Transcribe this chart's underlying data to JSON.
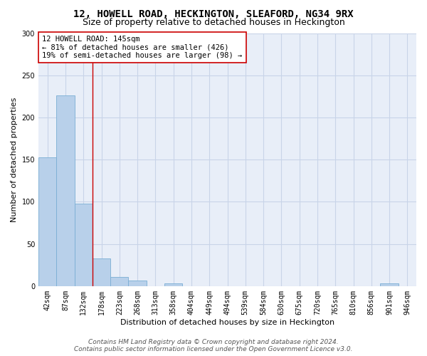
{
  "title": "12, HOWELL ROAD, HECKINGTON, SLEAFORD, NG34 9RX",
  "subtitle": "Size of property relative to detached houses in Heckington",
  "xlabel": "Distribution of detached houses by size in Heckington",
  "ylabel": "Number of detached properties",
  "bin_labels": [
    "42sqm",
    "87sqm",
    "132sqm",
    "178sqm",
    "223sqm",
    "268sqm",
    "313sqm",
    "358sqm",
    "404sqm",
    "449sqm",
    "494sqm",
    "539sqm",
    "584sqm",
    "630sqm",
    "675sqm",
    "720sqm",
    "765sqm",
    "810sqm",
    "856sqm",
    "901sqm",
    "946sqm"
  ],
  "bar_values": [
    153,
    226,
    98,
    33,
    11,
    7,
    0,
    3,
    0,
    0,
    0,
    0,
    0,
    0,
    0,
    0,
    0,
    0,
    0,
    3,
    0
  ],
  "bar_color": "#b8d0ea",
  "bar_edge_color": "#7aaed4",
  "grid_color": "#c8d4e8",
  "background_color": "#e8eef8",
  "vline_color": "#cc0000",
  "annotation_text": "12 HOWELL ROAD: 145sqm\n← 81% of detached houses are smaller (426)\n19% of semi-detached houses are larger (98) →",
  "annotation_box_color": "#ffffff",
  "annotation_box_edge_color": "#cc0000",
  "ylim": [
    0,
    300
  ],
  "yticks": [
    0,
    50,
    100,
    150,
    200,
    250,
    300
  ],
  "footer_line1": "Contains HM Land Registry data © Crown copyright and database right 2024.",
  "footer_line2": "Contains public sector information licensed under the Open Government Licence v3.0.",
  "title_fontsize": 10,
  "subtitle_fontsize": 9,
  "axis_label_fontsize": 8,
  "tick_fontsize": 7,
  "annotation_fontsize": 7.5,
  "footer_fontsize": 6.5
}
